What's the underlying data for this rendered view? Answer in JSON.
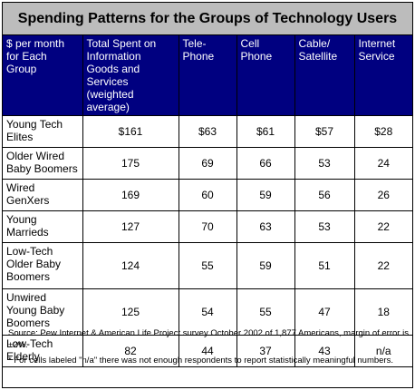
{
  "title": "Spending Patterns for the Groups of Technology Users",
  "table": {
    "headers": [
      "$ per month for Each Group",
      "Total Spent on Information Goods and Services (weighted average)",
      "Tele-Phone",
      "Cell Phone",
      "Cable/ Satellite",
      "Internet Service"
    ],
    "rows": [
      [
        "Young Tech Elites",
        "$161",
        "$63",
        "$61",
        "$57",
        "$28"
      ],
      [
        "Older Wired Baby Boomers",
        "175",
        "69",
        "66",
        "53",
        "24"
      ],
      [
        "Wired GenXers",
        "169",
        "60",
        "59",
        "56",
        "26"
      ],
      [
        "Young Marrieds",
        "127",
        "70",
        "63",
        "53",
        "22"
      ],
      [
        "Low-Tech Older Baby Boomers",
        "124",
        "55",
        "59",
        "51",
        "22"
      ],
      [
        "Unwired Young Baby Boomers",
        "125",
        "54",
        "55",
        "47",
        "18"
      ],
      [
        "Low-Tech Elderly",
        "82",
        "44",
        "37",
        "43",
        "n/a"
      ]
    ]
  },
  "notes": {
    "source": "Source: Pew Internet & American Life Project survey October 2002 of 1,877 Americans, margin of error is ±2%.",
    "footnote": "* For cells labeled \"n/a\" there was not enough respondents to report statistically meaningful numbers."
  },
  "colors": {
    "title_background": "#bcbcbc",
    "header_background": "#000080",
    "header_text": "#ffffff",
    "border": "#000000"
  }
}
